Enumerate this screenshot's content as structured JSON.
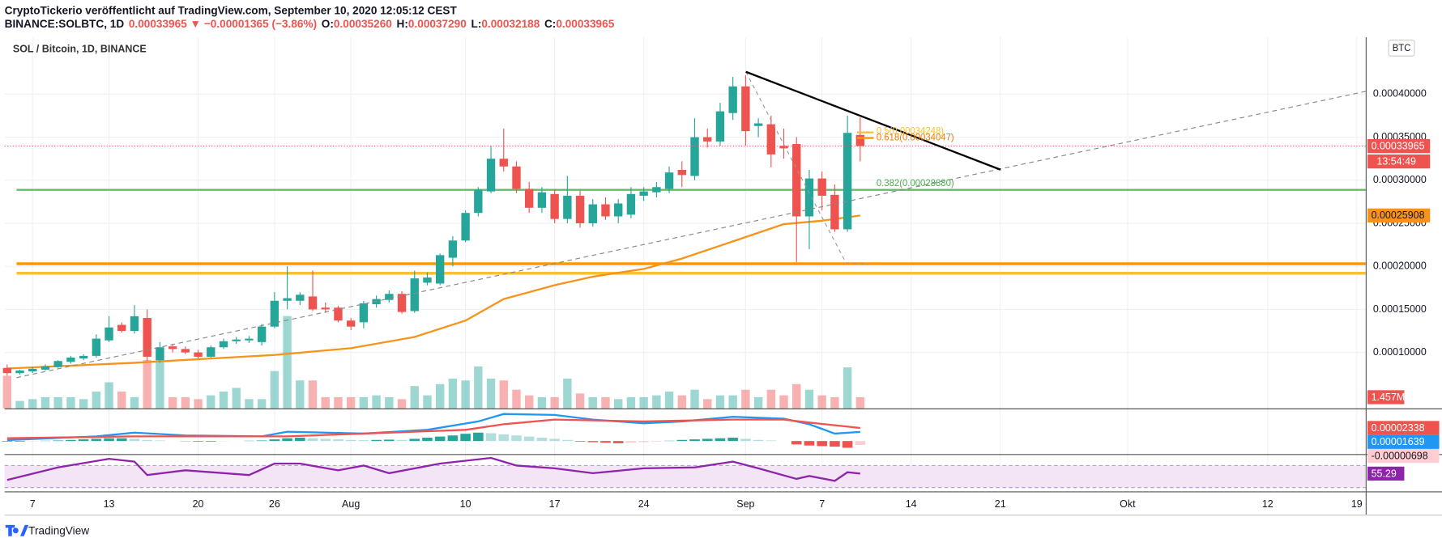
{
  "header": {
    "publisher": "CryptoTickerio veröffentlicht auf TradingView.com, September 10, 2020 12:05:12 CEST",
    "symbol_line": [
      "BINANCE:SOLBTC, 1D",
      "0.00033965 ▼ −0.00001365 (−3.86%)",
      "O:",
      "0.00035260",
      "H:",
      "0.00037290",
      "L:",
      "0.00032188",
      "C:",
      "0.00033965"
    ]
  },
  "footer": "TradingView",
  "chart_data": [
    {
      "type": "candlestick",
      "title": "SOL / Bitcoin, 1D, BINANCE",
      "currency": "BTC",
      "grid": true,
      "up_color": "#26a69a",
      "down_color": "#ef5350",
      "xlim": [
        -0.2,
        106.7
      ],
      "xticks": [
        {
          "value": 2,
          "label": "7"
        },
        {
          "value": 8,
          "label": "13"
        },
        {
          "value": 15,
          "label": "20"
        },
        {
          "value": 21,
          "label": "26"
        },
        {
          "value": 27,
          "label": "Aug"
        },
        {
          "value": 36,
          "label": "10"
        },
        {
          "value": 43,
          "label": "17"
        },
        {
          "value": 50,
          "label": "24"
        },
        {
          "value": 58,
          "label": "Sep"
        },
        {
          "value": 64,
          "label": "7"
        },
        {
          "value": 71,
          "label": "14"
        },
        {
          "value": 78,
          "label": "21"
        },
        {
          "value": 88,
          "label": "Okt"
        },
        {
          "value": 99,
          "label": "12"
        },
        {
          "value": 106,
          "label": "19"
        }
      ],
      "ylim": [
        3.5e-05,
        0.000466
      ],
      "yticks": [
        {
          "value": 0.0001,
          "label": "0.00010000"
        },
        {
          "value": 0.00015,
          "label": "0.00015000"
        },
        {
          "value": 0.0002,
          "label": "0.00020000"
        },
        {
          "value": 0.00025,
          "label": "0.00025000"
        },
        {
          "value": 0.0003,
          "label": "0.00030000"
        },
        {
          "value": 0.00035,
          "label": "0.00035000"
        },
        {
          "value": 0.0004,
          "label": "0.00040000"
        }
      ],
      "open": [
        8.2e-05,
        7.6e-05,
        7.8e-05,
        8e-05,
        8.3e-05,
        8.9e-05,
        9.3e-05,
        9.6e-05,
        0.000114,
        0.000132,
        0.000125,
        0.00014,
        9.1e-05,
        0.000107,
        0.000104,
        0.0001,
        9.5e-05,
        0.000106,
        0.000113,
        0.000114,
        0.000112,
        0.00013,
        0.00016,
        0.00016,
        0.000165,
        0.000152,
        0.000152,
        0.000137,
        0.000135,
        0.000156,
        0.000161,
        0.000168,
        0.000148,
        0.000181,
        0.00018,
        0.00021,
        0.00023,
        0.000262,
        0.000287,
        0.000325,
        0.000316,
        0.00029,
        0.000268,
        0.000284,
        0.000255,
        0.000282,
        0.00025,
        0.000272,
        0.000258,
        0.00026,
        0.000282,
        0.000286,
        0.00029,
        0.000312,
        0.000305,
        0.00035,
        0.000345,
        0.000378,
        0.000409,
        0.000363,
        0.000365,
        0.00034,
        0.000342,
        0.000258,
        0.000302,
        0.000283,
        0.000243,
        0.0003526
      ],
      "high": [
        8.6e-05,
        8e-05,
        8.3e-05,
        8.6e-05,
        9.1e-05,
        9.6e-05,
        9.8e-05,
        0.000121,
        0.000142,
        0.000135,
        0.000155,
        0.00015,
        0.000112,
        0.00011,
        0.000107,
        0.000103,
        0.000108,
        0.000116,
        0.000118,
        0.000119,
        0.000133,
        0.00017,
        0.0002,
        0.00017,
        0.000195,
        0.000158,
        0.000154,
        0.00014,
        0.00016,
        0.000166,
        0.000172,
        0.000171,
        0.000195,
        0.000193,
        0.000215,
        0.000235,
        0.000265,
        0.000292,
        0.00034,
        0.00036,
        0.000322,
        0.000298,
        0.000292,
        0.00029,
        0.000305,
        0.000288,
        0.000278,
        0.00028,
        0.000278,
        0.000292,
        0.000292,
        0.000298,
        0.000316,
        0.000322,
        0.000372,
        0.00036,
        0.00039,
        0.00042,
        0.000422,
        0.000372,
        0.000375,
        0.00036,
        0.00035,
        0.000312,
        0.00031,
        0.000295,
        0.000375,
        0.0003729
      ],
      "low": [
        7.3e-05,
        7.4e-05,
        7.6e-05,
        7.9e-05,
        8.2e-05,
        8.7e-05,
        9.1e-05,
        9.4e-05,
        0.000112,
        0.000123,
        0.000122,
        9e-05,
        8.8e-05,
        0.0001,
        9.8e-05,
        9.3e-05,
        9.4e-05,
        0.000104,
        0.00011,
        0.000111,
        0.000108,
        0.000128,
        0.00015,
        0.000155,
        0.000148,
        0.000146,
        0.000135,
        0.000126,
        0.000128,
        0.000152,
        0.000158,
        0.000145,
        0.000146,
        0.000178,
        0.000178,
        0.0002,
        0.000228,
        0.000258,
        0.000285,
        0.00031,
        0.000285,
        0.000262,
        0.000262,
        0.00025,
        0.00025,
        0.000245,
        0.000246,
        0.000254,
        0.00025,
        0.000256,
        0.000276,
        0.00028,
        0.000285,
        0.000292,
        0.0003,
        0.000338,
        0.00034,
        0.00037,
        0.00034,
        0.00035,
        0.000315,
        0.000325,
        0.000205,
        0.00022,
        0.000265,
        0.00024,
        0.00024,
        0.00032188
      ],
      "close": [
        7.6e-05,
        7.9e-05,
        8.1e-05,
        8.4e-05,
        9e-05,
        9.4e-05,
        9.6e-05,
        0.000116,
        0.000129,
        0.000125,
        0.000142,
        9.5e-05,
        0.000106,
        0.000104,
        0.0001,
        9.5e-05,
        0.000106,
        0.000113,
        0.000115,
        0.000116,
        0.00013,
        0.00016,
        0.000163,
        0.000167,
        0.00015,
        0.00015,
        0.000137,
        0.00013,
        0.000157,
        0.000162,
        0.000168,
        0.000147,
        0.000186,
        0.000187,
        0.000213,
        0.00023,
        0.000262,
        0.000289,
        0.000325,
        0.000316,
        0.00029,
        0.000268,
        0.000286,
        0.000255,
        0.000282,
        0.00025,
        0.000272,
        0.000258,
        0.000273,
        0.000284,
        0.000287,
        0.000292,
        0.000309,
        0.000306,
        0.00035,
        0.000345,
        0.00038,
        0.000409,
        0.000357,
        0.000366,
        0.00033,
        0.000337,
        0.000258,
        0.000302,
        0.000282,
        0.000243,
        0.000355,
        0.00033965
      ],
      "volume": {
        "ylim": [
          0,
          12.14
        ],
        "values": [
          4.25,
          0.97,
          1.21,
          1.46,
          1.46,
          1.46,
          1.21,
          2.19,
          3.4,
          2.19,
          1.46,
          6.31,
          7.04,
          1.46,
          1.46,
          1.21,
          1.7,
          2.19,
          2.67,
          1.21,
          1.21,
          4.86,
          12.02,
          3.64,
          3.64,
          1.46,
          1.46,
          1.46,
          1.46,
          1.7,
          1.46,
          1.21,
          2.91,
          1.7,
          3.16,
          3.88,
          3.64,
          5.46,
          3.88,
          3.64,
          2.43,
          1.7,
          1.46,
          1.46,
          3.88,
          1.94,
          1.46,
          1.46,
          1.21,
          1.46,
          1.46,
          1.7,
          2.19,
          1.7,
          2.43,
          1.21,
          1.7,
          1.7,
          2.43,
          1.46,
          2.43,
          1.7,
          3.16,
          2.43,
          1.7,
          1.46,
          5.34,
          1.457
        ],
        "last": {
          "value": 1.457,
          "label": "1.457M"
        }
      },
      "ma": {
        "color": "#f7931a",
        "x": [
          0,
          10,
          21,
          27,
          32,
          36,
          39,
          43,
          46,
          50,
          53,
          57,
          61,
          64,
          67
        ],
        "values": [
          8.14e-05,
          8.8e-05,
          9.7e-05,
          0.000105,
          0.000118,
          0.000137,
          0.000162,
          0.000178,
          0.000188,
          0.000197,
          0.000209,
          0.000229,
          0.000249,
          0.000253,
          0.00025908
        ],
        "last": {
          "value": 0.00025908,
          "label": "0.00025908"
        }
      },
      "levels": [
        {
          "value": 0.000203,
          "color": "#ff9800"
        },
        {
          "value": 0.000192,
          "color": "#fbc02d"
        },
        {
          "value": 0.0002888,
          "color": "#66bb6a"
        }
      ],
      "last_price": {
        "value": 0.00033965,
        "label": "0.00033965"
      },
      "countdown": "13:54:49",
      "fib_labels": [
        "0.5(0.00034248)",
        "0.618(0.00034047)",
        "0.382(0.00028880)"
      ]
    },
    {
      "type": "macd",
      "ylim": [
        -2.33e-05,
        5.5e-05
      ],
      "macd": {
        "color": "#2196f3",
        "x": [
          0,
          7,
          10,
          14,
          20,
          22,
          28,
          33,
          37,
          39,
          43,
          46,
          50,
          53,
          57,
          61,
          63,
          65,
          67
        ],
        "values": [
          1.7e-06,
          8.3e-06,
          1.5e-05,
          1e-05,
          8.3e-06,
          1.67e-05,
          1.33e-05,
          2e-05,
          3.5e-05,
          4.83e-05,
          4.67e-05,
          3.83e-05,
          3.17e-05,
          3.5e-05,
          4.33e-05,
          4e-05,
          3e-05,
          1.33e-05,
          1.639e-05
        ]
      },
      "signal": {
        "color": "#ef5350",
        "x": [
          0,
          10,
          22,
          28,
          36,
          39,
          43,
          50,
          57,
          61,
          63,
          67
        ],
        "values": [
          5e-06,
          8.3e-06,
          8.3e-06,
          1.33e-05,
          2e-05,
          3e-05,
          3.83e-05,
          3.5e-05,
          3.83e-05,
          3.83e-05,
          3.3e-05,
          2.338e-05
        ]
      },
      "histogram": {
        "colors": [
          "#26a69a",
          "#b2dfdb",
          "#ef5350",
          "#ffcdd2"
        ],
        "values": [
          -1e-06,
          -1e-06,
          -5e-07,
          5e-07,
          1e-06,
          2e-06,
          3e-06,
          4e-06,
          5e-06,
          5e-06,
          4e-06,
          2e-06,
          1e-06,
          0,
          -5e-07,
          -1e-06,
          -1e-06,
          -5e-07,
          0,
          5e-07,
          1e-06,
          3e-06,
          5e-06,
          6e-06,
          5e-06,
          4e-06,
          3e-06,
          2e-06,
          1.5e-06,
          2e-06,
          2.5e-06,
          2e-06,
          4e-06,
          6e-06,
          8e-06,
          1e-05,
          1.3e-05,
          1.5e-05,
          1.4e-05,
          1.2e-05,
          1e-05,
          8e-06,
          6e-06,
          4e-06,
          2e-06,
          -1e-06,
          -2e-06,
          -3e-06,
          -4e-06,
          -3e-06,
          -2e-06,
          -1e-06,
          5e-07,
          2e-06,
          3e-06,
          4e-06,
          5e-06,
          6e-06,
          4e-06,
          2e-06,
          1e-06,
          0,
          -6e-06,
          -8e-06,
          -9e-06,
          -1e-05,
          -1.2e-05,
          -6.98e-06
        ]
      },
      "badges": [
        {
          "value": 2.338e-05,
          "label": "0.00002338",
          "color": "#ef5350",
          "text_color": "#ffffff"
        },
        {
          "value": 1.639e-05,
          "label": "0.00001639",
          "color": "#2196f3",
          "text_color": "#ffffff"
        },
        {
          "value": -6.98e-06,
          "label": "-0.00000698",
          "color": "#ffcdd2",
          "text_color": "#131722"
        }
      ]
    },
    {
      "type": "rsi",
      "ylim": [
        23,
        87.4
      ],
      "band": [
        30,
        70
      ],
      "color": "#8e24aa",
      "x": [
        0,
        4,
        8,
        10,
        11,
        14,
        19,
        21,
        23,
        26,
        28,
        30,
        34,
        38,
        40,
        43,
        46,
        50,
        54,
        57,
        59,
        62,
        63,
        65,
        66,
        67
      ],
      "values": [
        43.9,
        66.5,
        82.2,
        77,
        52.6,
        61.3,
        52.6,
        73.5,
        73.5,
        61.3,
        70,
        56.1,
        73.5,
        83.9,
        70,
        64.8,
        56.1,
        64.8,
        66.5,
        77,
        64.8,
        45.7,
        50.9,
        42.2,
        57.8,
        55.29
      ],
      "badge": {
        "value": 55.29,
        "label": "55.29"
      }
    }
  ]
}
